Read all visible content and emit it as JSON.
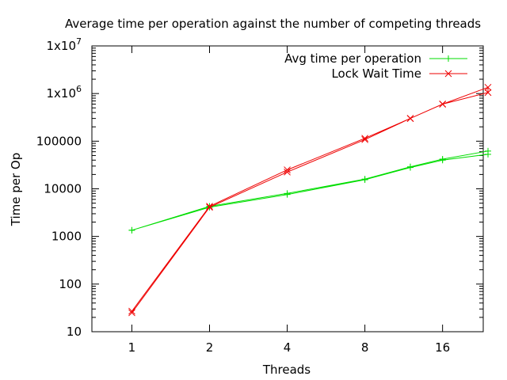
{
  "chart_data": {
    "type": "line",
    "title": "Average time per operation against the number of competing threads",
    "xlabel": "Threads",
    "ylabel": "Time per Op",
    "x_scale": "log2",
    "y_scale": "log10",
    "xlim": [
      0.7,
      23
    ],
    "ylim": [
      10,
      10000000
    ],
    "x_ticks": [
      {
        "value": 1,
        "label": "1"
      },
      {
        "value": 2,
        "label": "2"
      },
      {
        "value": 4,
        "label": "4"
      },
      {
        "value": 8,
        "label": "8"
      },
      {
        "value": 16,
        "label": "16"
      }
    ],
    "y_ticks": [
      {
        "value": 10,
        "label": "10"
      },
      {
        "value": 100,
        "label": "100"
      },
      {
        "value": 1000,
        "label": "1000"
      },
      {
        "value": 10000,
        "label": "10000"
      },
      {
        "value": 100000,
        "label": "100000"
      },
      {
        "value": 1000000,
        "base": "1x10",
        "exp": "6"
      },
      {
        "value": 10000000,
        "base": "1x10",
        "exp": "7"
      }
    ],
    "legend_position": "top-right",
    "series": [
      {
        "name": "Avg time per operation",
        "color": "#00dd00",
        "marker": "plus",
        "x": [
          1,
          2,
          4,
          8,
          12,
          16,
          24,
          24,
          16,
          12,
          8,
          4,
          2,
          1
        ],
        "y": [
          1350,
          4300,
          8000,
          16000,
          29000,
          42000,
          62000,
          53000,
          40000,
          28000,
          15500,
          7600,
          4100,
          1350
        ]
      },
      {
        "name": "Lock Wait Time",
        "color": "#ee0000",
        "marker": "cross",
        "x": [
          1,
          2,
          4,
          8,
          12,
          16,
          24,
          24,
          16,
          12,
          8,
          4,
          2,
          1
        ],
        "y": [
          27,
          4300,
          25000,
          115000,
          300000,
          600000,
          1350000,
          1050000,
          600000,
          300000,
          108000,
          22500,
          4100,
          25
        ]
      }
    ]
  }
}
